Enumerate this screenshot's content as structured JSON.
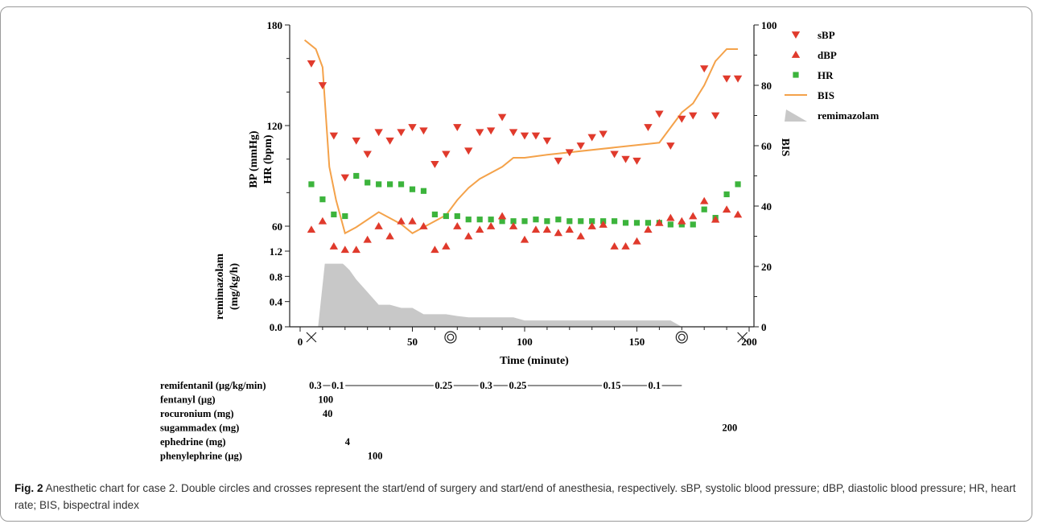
{
  "chart_data": {
    "type": "scatter",
    "xlabel": "Time (minute)",
    "ylabel_left_top": "BP (mmHg)",
    "ylabel_left_bottom": "HR (bpm)",
    "ylabel_right": "BIS",
    "ylabel_remi_top": "remimazolam",
    "ylabel_remi_bottom": "(mg/kg/h)",
    "xlim": [
      0,
      200
    ],
    "x_ticks": [
      "0",
      "50",
      "100",
      "150",
      "200"
    ],
    "ylim_left": [
      60,
      180
    ],
    "y_ticks_left": [
      "60",
      "120",
      "180"
    ],
    "ylim_right": [
      0,
      100
    ],
    "y_ticks_right": [
      "0",
      "20",
      "40",
      "60",
      "80",
      "100"
    ],
    "ylim_remi": [
      0,
      1.2
    ],
    "y_ticks_remi": [
      "0.0",
      "0.4",
      "0.8",
      "1.2"
    ],
    "legend_position": "top-right",
    "legend": [
      {
        "key": "sbp",
        "label": "sBP",
        "marker": "triangle-down",
        "color": "#e03a2c"
      },
      {
        "key": "dbp",
        "label": "dBP",
        "marker": "triangle-up",
        "color": "#e03a2c"
      },
      {
        "key": "hr",
        "label": "HR",
        "marker": "square",
        "color": "#3cb43c"
      },
      {
        "key": "bis",
        "label": "BIS",
        "marker": "line",
        "color": "#f4a24a"
      },
      {
        "key": "remi",
        "label": "remimazolam",
        "marker": "area",
        "color": "#c8c8c8"
      }
    ],
    "series": [
      {
        "key": "sbp",
        "x": [
          5,
          10,
          15,
          20,
          25,
          30,
          35,
          40,
          45,
          50,
          55,
          60,
          65,
          70,
          75,
          80,
          85,
          90,
          95,
          100,
          105,
          110,
          115,
          120,
          125,
          130,
          135,
          140,
          145,
          150,
          155,
          160,
          165,
          170,
          175,
          180,
          185,
          190,
          195
        ],
        "y": [
          157,
          144,
          114,
          89,
          111,
          103,
          116,
          111,
          116,
          119,
          117,
          97,
          103,
          119,
          105,
          116,
          117,
          125,
          116,
          114,
          114,
          111,
          99,
          104,
          108,
          113,
          115,
          103,
          100,
          99,
          119,
          127,
          108,
          124,
          126,
          154,
          126,
          148,
          148
        ]
      },
      {
        "key": "dbp",
        "x": [
          5,
          10,
          15,
          20,
          25,
          30,
          35,
          40,
          45,
          50,
          55,
          60,
          65,
          70,
          75,
          80,
          85,
          90,
          95,
          100,
          105,
          110,
          115,
          120,
          125,
          130,
          135,
          140,
          145,
          150,
          155,
          160,
          165,
          170,
          175,
          180,
          185,
          190,
          195
        ],
        "y": [
          58,
          63,
          48,
          46,
          46,
          52,
          60,
          54,
          63,
          63,
          60,
          46,
          48,
          60,
          54,
          58,
          60,
          66,
          60,
          52,
          58,
          58,
          56,
          58,
          54,
          60,
          61,
          48,
          48,
          51,
          58,
          62,
          65,
          63,
          66,
          75,
          64,
          70,
          67
        ]
      },
      {
        "key": "hr",
        "x": [
          5,
          10,
          15,
          20,
          25,
          30,
          35,
          40,
          45,
          50,
          55,
          60,
          65,
          70,
          75,
          80,
          85,
          90,
          95,
          100,
          105,
          110,
          115,
          120,
          125,
          130,
          135,
          140,
          145,
          150,
          155,
          160,
          165,
          170,
          175,
          180,
          185,
          190,
          195
        ],
        "y": [
          85,
          76,
          67,
          66,
          90,
          86,
          85,
          85,
          85,
          82,
          81,
          67,
          66,
          66,
          64,
          64,
          64,
          63,
          63,
          63,
          64,
          63,
          64,
          63,
          63,
          63,
          63,
          63,
          62,
          62,
          62,
          62,
          61,
          61,
          61,
          70,
          65,
          79,
          85
        ]
      },
      {
        "key": "bis",
        "x": [
          2,
          7,
          10,
          13,
          16,
          20,
          25,
          35,
          45,
          50,
          55,
          60,
          65,
          70,
          75,
          80,
          90,
          95,
          100,
          105,
          110,
          160,
          165,
          170,
          175,
          180,
          185,
          190,
          195
        ],
        "y": [
          95,
          92,
          86,
          53,
          42,
          31,
          33,
          38,
          34,
          31,
          33,
          35,
          37,
          42,
          46,
          49,
          53,
          56,
          56,
          56.5,
          57,
          61,
          66,
          71,
          74,
          80,
          88,
          92,
          92
        ]
      },
      {
        "key": "remi",
        "x": [
          8,
          11,
          19,
          20,
          22,
          25,
          30,
          35,
          40,
          45,
          50,
          55,
          60,
          65,
          70,
          75,
          85,
          95,
          100,
          125,
          165,
          170
        ],
        "y": [
          0,
          1.0,
          1.0,
          0.97,
          0.9,
          0.75,
          0.55,
          0.35,
          0.35,
          0.3,
          0.3,
          0.2,
          0.2,
          0.2,
          0.17,
          0.15,
          0.15,
          0.15,
          0.1,
          0.1,
          0.1,
          0
        ]
      }
    ],
    "events": [
      {
        "type": "cross",
        "x": 5,
        "meaning": "start of anesthesia"
      },
      {
        "type": "double-circle",
        "x": 67,
        "meaning": "start of surgery"
      },
      {
        "type": "double-circle",
        "x": 170,
        "meaning": "end of surgery"
      },
      {
        "type": "cross",
        "x": 197,
        "meaning": "end of anesthesia"
      }
    ],
    "drugs": [
      {
        "label": "remifentanil (μg/kg/min)",
        "doses": [
          {
            "x": 4,
            "text": "0.3"
          },
          {
            "x": 14,
            "text": "0.1"
          },
          {
            "x": 60,
            "text": "0.25"
          },
          {
            "x": 80,
            "text": "0.3"
          },
          {
            "x": 93,
            "text": "0.25"
          },
          {
            "x": 135,
            "text": "0.15"
          },
          {
            "x": 155,
            "text": "0.1"
          }
        ],
        "infusion_end": 170
      },
      {
        "label": "fentanyl (μg)",
        "doses": [
          {
            "x": 8,
            "text": "100"
          }
        ]
      },
      {
        "label": "rocuronium (mg)",
        "doses": [
          {
            "x": 10,
            "text": "40"
          }
        ]
      },
      {
        "label": "sugammadex (mg)",
        "doses": [
          {
            "x": 188,
            "text": "200"
          }
        ]
      },
      {
        "label": "ephedrine (mg)",
        "doses": [
          {
            "x": 20,
            "text": "4"
          }
        ]
      },
      {
        "label": "phenylephrine (μg)",
        "doses": [
          {
            "x": 30,
            "text": "100"
          }
        ]
      }
    ]
  },
  "caption": {
    "label": "Fig. 2",
    "text": " Anesthetic chart for case 2. Double circles and crosses represent the start/end of surgery and start/end of anesthesia, respectively. sBP, systolic blood pressure; dBP, diastolic blood pressure; HR, heart rate; BIS, bispectral index"
  }
}
